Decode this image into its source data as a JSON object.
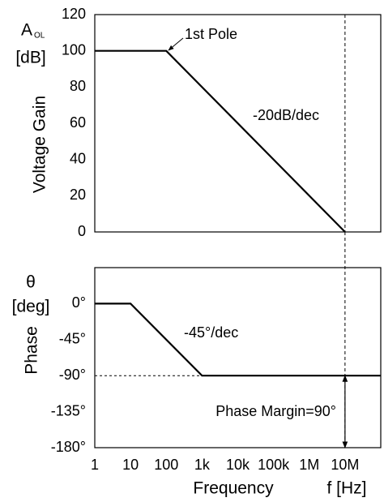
{
  "chart_data": [
    {
      "type": "line",
      "xscale": "log",
      "xlim": [
        1,
        100000000
      ],
      "ylim": [
        0,
        120
      ],
      "yticks": [
        0,
        20,
        40,
        60,
        80,
        100,
        120
      ],
      "ylabel": "Voltage Gain",
      "unit_symbol": "A",
      "unit_subscript": "OL",
      "unit": "[dB]",
      "series": [
        {
          "color": "#000000",
          "x": [
            1,
            100,
            10000000
          ],
          "values": [
            100,
            100,
            0
          ]
        }
      ],
      "vline": 10000000,
      "annotations": [
        "1st Pole",
        "-20dB/dec"
      ]
    },
    {
      "type": "line",
      "xscale": "log",
      "xlim": [
        1,
        100000000
      ],
      "ylim": [
        -180,
        45
      ],
      "xticks": [
        1,
        10,
        100,
        {
          "value": 1000,
          "label": "1k"
        },
        {
          "value": 10000,
          "label": "10k"
        },
        {
          "value": 100000,
          "label": "100k"
        },
        {
          "value": 1000000,
          "label": "1M"
        },
        {
          "value": 10000000,
          "label": "10M"
        }
      ],
      "yticks": [
        {
          "value": 0,
          "label": "0°"
        },
        {
          "value": -45,
          "label": "-45°"
        },
        {
          "value": -90,
          "label": "-90°"
        },
        {
          "value": -135,
          "label": "-135°"
        },
        {
          "value": -180,
          "label": "-180°"
        }
      ],
      "ylabel": "Phase",
      "unit_symbol": "θ",
      "unit": "[deg]",
      "xlabel": "Frequency",
      "xunit": "f [Hz]",
      "series": [
        {
          "color": "#000000",
          "x": [
            1,
            10,
            1000,
            100000000
          ],
          "values": [
            0,
            0,
            -90,
            -90
          ]
        }
      ],
      "vline": 10000000,
      "hline": -90,
      "arrow": {
        "x": 10000000,
        "from": -90,
        "to": -180
      },
      "annotations": [
        "-45°/dec",
        "Phase Margin=90°"
      ]
    }
  ]
}
